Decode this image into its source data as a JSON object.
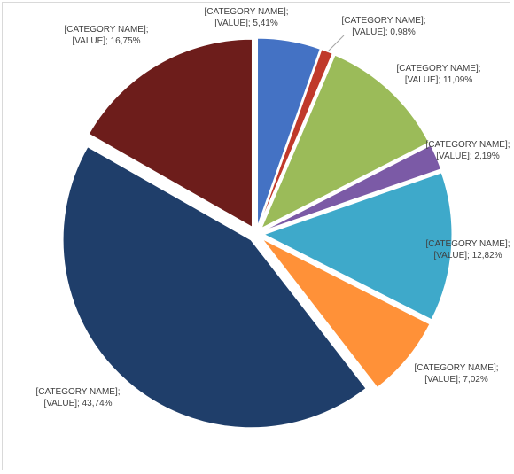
{
  "chart_data": {
    "type": "pie",
    "title": "",
    "legend": "none",
    "exploded": true,
    "start_angle_deg": 0,
    "slices": [
      {
        "label": "[CATEGORY NAME];",
        "value_text": "[VALUE]; 5,41%",
        "value": 5.41,
        "color": "#4472C4"
      },
      {
        "label": "[CATEGORY NAME];",
        "value_text": "[VALUE]; 0,98%",
        "value": 0.98,
        "color": "#C0392B"
      },
      {
        "label": "[CATEGORY NAME];",
        "value_text": "[VALUE]; 11,09%",
        "value": 11.09,
        "color": "#9BBB59"
      },
      {
        "label": "[CATEGORY NAME];",
        "value_text": "[VALUE]; 2,19%",
        "value": 2.19,
        "color": "#7B5AA6"
      },
      {
        "label": "[CATEGORY NAME];",
        "value_text": "[VALUE]; 12,82%",
        "value": 12.82,
        "color": "#3EA9CA"
      },
      {
        "label": "[CATEGORY NAME];",
        "value_text": "[VALUE]; 7,02%",
        "value": 7.02,
        "color": "#FF9138"
      },
      {
        "label": "[CATEGORY NAME];",
        "value_text": "[VALUE]; 43,74%",
        "value": 43.74,
        "color": "#1F3E6A"
      },
      {
        "label": "[CATEGORY NAME];",
        "value_text": "[VALUE]; 16,75%",
        "value": 16.75,
        "color": "#6D1D1B"
      }
    ]
  }
}
